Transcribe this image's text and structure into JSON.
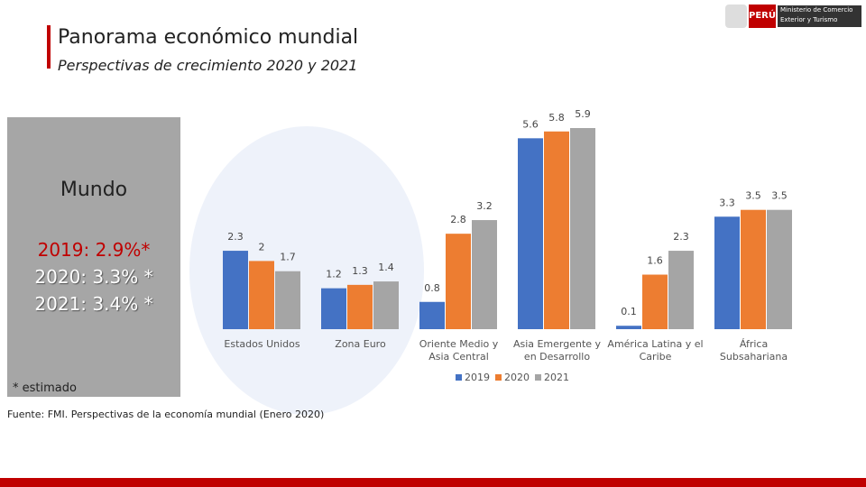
{
  "header": {
    "title": "Panorama económico mundial",
    "subtitle": "Perspectivas de crecimiento 2020 y 2021"
  },
  "logo": {
    "country": "PERÚ",
    "ministry_line1": "Ministerio de Comercio",
    "ministry_line2": "Exterior y Turismo"
  },
  "sidebar": {
    "heading": "Mundo",
    "lines": [
      "2019: 2.9%*",
      "2020: 3.3% *",
      "2021: 3.4% *"
    ],
    "note": "* estimado"
  },
  "source": "Fuente: FMI. Perspectivas de la economía mundial (Enero 2020)",
  "chart_data": {
    "type": "bar",
    "categories": [
      "Estados Unidos",
      "Zona Euro",
      "Oriente Medio y Asia Central",
      "Asia Emergente y en Desarrollo",
      "América Latina y el Caribe",
      "África Subsahariana"
    ],
    "series": [
      {
        "name": "2019",
        "color": "#4472c4",
        "values": [
          2.3,
          1.2,
          0.8,
          5.6,
          0.1,
          3.3
        ]
      },
      {
        "name": "2020",
        "color": "#ed7d31",
        "values": [
          2,
          1.3,
          2.8,
          5.8,
          1.6,
          3.5
        ]
      },
      {
        "name": "2021",
        "color": "#a5a5a5",
        "values": [
          1.7,
          1.4,
          3.2,
          5.9,
          2.3,
          3.5
        ]
      }
    ],
    "legend": "bottom"
  }
}
